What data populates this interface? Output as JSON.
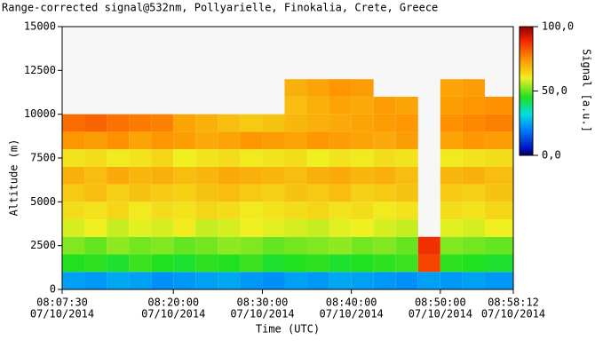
{
  "chart_data": {
    "type": "heatmap",
    "title": "Range-corrected signal@532nm, Pollyarielle, Finokalia, Crete, Greece",
    "x_label": "Time (UTC)",
    "y_label": "Altitude (m)",
    "colorbar_label": "Signal [a.u.]",
    "xlim": [
      "08:07:30",
      "08:58:12"
    ],
    "xticks": [
      {
        "time": "08:07:30",
        "date": "07/10/2014"
      },
      {
        "time": "08:20:00",
        "date": "07/10/2014"
      },
      {
        "time": "08:30:00",
        "date": "07/10/2014"
      },
      {
        "time": "08:40:00",
        "date": "07/10/2014"
      },
      {
        "time": "08:50:00",
        "date": "07/10/2014"
      },
      {
        "time": "08:58:12",
        "date": "07/10/2014"
      }
    ],
    "ylim": [
      0,
      15000
    ],
    "yticks": [
      0,
      2500,
      5000,
      7500,
      10000,
      12500,
      15000
    ],
    "clim": [
      0,
      100
    ],
    "cticks": [
      {
        "value": 0,
        "label": "0,0"
      },
      {
        "value": 50,
        "label": "50,0"
      },
      {
        "value": 100,
        "label": "100,0"
      }
    ],
    "x_bins": [
      "08:07:30",
      "08:10:00",
      "08:12:30",
      "08:15:00",
      "08:17:30",
      "08:20:00",
      "08:22:30",
      "08:25:00",
      "08:27:30",
      "08:30:00",
      "08:32:30",
      "08:35:00",
      "08:37:30",
      "08:40:00",
      "08:42:30",
      "08:45:00",
      "08:47:30",
      "08:50:00",
      "08:52:30",
      "08:55:00",
      "08:58:12"
    ],
    "y_bins": [
      0,
      1000,
      2000,
      3000,
      4000,
      5000,
      6000,
      7000,
      8000,
      9000,
      10000,
      11000,
      12000
    ],
    "values": [
      [
        24,
        23,
        25,
        24,
        22,
        23,
        24,
        25,
        23,
        22,
        24,
        23,
        25,
        24,
        23,
        22,
        24,
        23,
        24,
        23
      ],
      [
        45,
        46,
        44,
        47,
        45,
        44,
        46,
        45,
        47,
        44,
        45,
        46,
        44,
        45,
        46,
        47,
        85,
        46,
        45,
        44
      ],
      [
        52,
        50,
        53,
        51,
        52,
        50,
        51,
        53,
        52,
        50,
        51,
        52,
        53,
        51,
        52,
        50,
        88,
        52,
        51,
        50
      ],
      [
        58,
        60,
        57,
        59,
        58,
        61,
        57,
        58,
        60,
        59,
        58,
        57,
        59,
        60,
        58,
        57,
        null,
        59,
        58,
        60
      ],
      [
        63,
        62,
        64,
        61,
        63,
        62,
        64,
        63,
        61,
        62,
        63,
        64,
        62,
        63,
        61,
        62,
        null,
        63,
        62,
        64
      ],
      [
        66,
        68,
        65,
        67,
        66,
        65,
        67,
        68,
        66,
        65,
        67,
        66,
        68,
        65,
        66,
        67,
        null,
        66,
        65,
        67
      ],
      [
        70,
        68,
        71,
        69,
        70,
        68,
        69,
        71,
        70,
        69,
        68,
        70,
        71,
        69,
        70,
        68,
        null,
        69,
        70,
        68
      ],
      [
        62,
        63,
        61,
        62,
        64,
        60,
        62,
        63,
        61,
        62,
        63,
        60,
        62,
        61,
        63,
        62,
        null,
        61,
        62,
        63
      ],
      [
        74,
        73,
        75,
        72,
        74,
        73,
        71,
        72,
        74,
        73,
        72,
        74,
        73,
        72,
        71,
        73,
        null,
        72,
        74,
        73
      ],
      [
        80,
        81,
        79,
        78,
        77,
        72,
        70,
        68,
        66,
        67,
        69,
        70,
        71,
        72,
        73,
        74,
        null,
        75,
        76,
        77
      ],
      [
        null,
        null,
        null,
        null,
        null,
        null,
        null,
        null,
        null,
        null,
        68,
        70,
        72,
        71,
        73,
        72,
        null,
        73,
        74,
        75
      ],
      [
        null,
        null,
        null,
        null,
        null,
        null,
        null,
        null,
        null,
        null,
        70,
        72,
        74,
        73,
        null,
        null,
        null,
        72,
        73,
        null
      ]
    ]
  }
}
